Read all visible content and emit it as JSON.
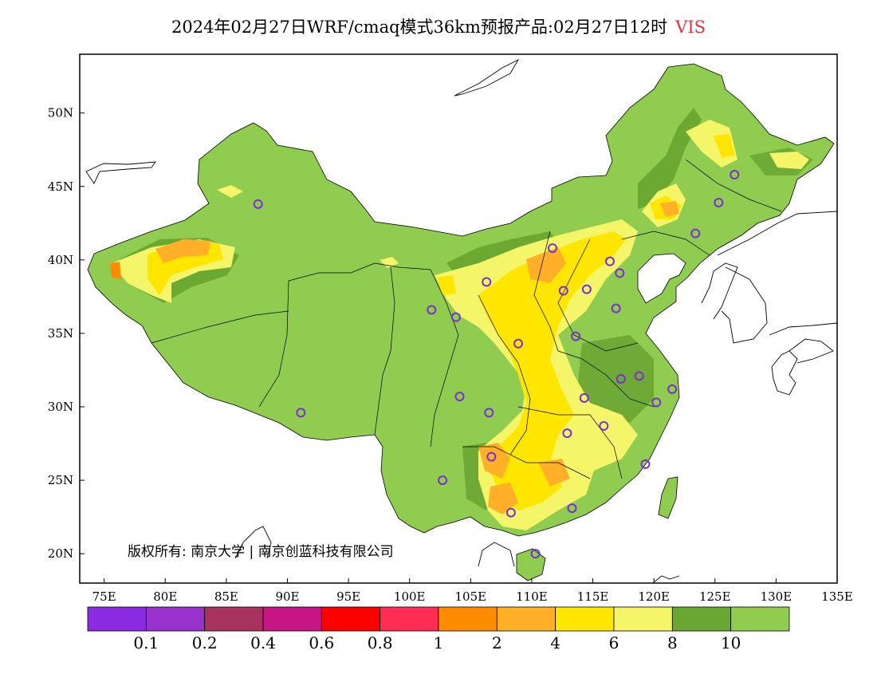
{
  "title": {
    "main": "2024年02月27日WRF/cmaq模式36km预报产品:02月27日12时",
    "variable": "VIS"
  },
  "axes": {
    "lon_ticks": [
      "75E",
      "80E",
      "85E",
      "90E",
      "95E",
      "100E",
      "105E",
      "110E",
      "115E",
      "120E",
      "125E",
      "130E",
      "135E"
    ],
    "lat_ticks": [
      "20N",
      "25N",
      "30N",
      "35N",
      "40N",
      "45N",
      "50N"
    ]
  },
  "copyright": "版权所有: 南京大学 | 南京创蓝科技有限公司",
  "colorbar": {
    "colors": [
      "#8b2be2",
      "#9932cc",
      "#a8325e",
      "#c71585",
      "#ff0000",
      "#ff2d55",
      "#ff8c00",
      "#ffb028",
      "#ffe600",
      "#f5f56a",
      "#6aa632",
      "#8fcc50"
    ],
    "labels": [
      "0.1",
      "0.2",
      "0.4",
      "0.6",
      "0.8",
      "1",
      "2",
      "4",
      "6",
      "8",
      "10"
    ]
  },
  "stations_color": "#7b2fd1",
  "chart_data": {
    "type": "heatmap",
    "title": "2024年02月27日WRF/cmaq模式36km预报产品:02月27日12时",
    "variable": "VIS",
    "xlim": [
      73,
      135
    ],
    "ylim": [
      18,
      54
    ],
    "levels": [
      0.1,
      0.2,
      0.4,
      0.6,
      0.8,
      1,
      2,
      4,
      6,
      8,
      10
    ],
    "stations": [
      [
        87.6,
        43.8
      ],
      [
        91.1,
        29.6
      ],
      [
        101.8,
        36.6
      ],
      [
        103.8,
        36.1
      ],
      [
        106.3,
        38.5
      ],
      [
        111.7,
        40.8
      ],
      [
        112.6,
        37.9
      ],
      [
        114.5,
        38.0
      ],
      [
        116.4,
        39.9
      ],
      [
        117.2,
        39.1
      ],
      [
        116.9,
        36.7
      ],
      [
        113.6,
        34.8
      ],
      [
        108.9,
        34.3
      ],
      [
        104.1,
        30.7
      ],
      [
        106.5,
        29.6
      ],
      [
        106.7,
        26.6
      ],
      [
        102.7,
        25.0
      ],
      [
        108.3,
        22.8
      ],
      [
        110.3,
        20.0
      ],
      [
        113.3,
        23.1
      ],
      [
        112.9,
        28.2
      ],
      [
        114.3,
        30.6
      ],
      [
        115.9,
        28.7
      ],
      [
        117.3,
        31.9
      ],
      [
        118.8,
        32.1
      ],
      [
        120.2,
        30.3
      ],
      [
        121.5,
        31.2
      ],
      [
        119.3,
        26.1
      ],
      [
        123.4,
        41.8
      ],
      [
        125.3,
        43.9
      ],
      [
        126.6,
        45.8
      ]
    ]
  }
}
